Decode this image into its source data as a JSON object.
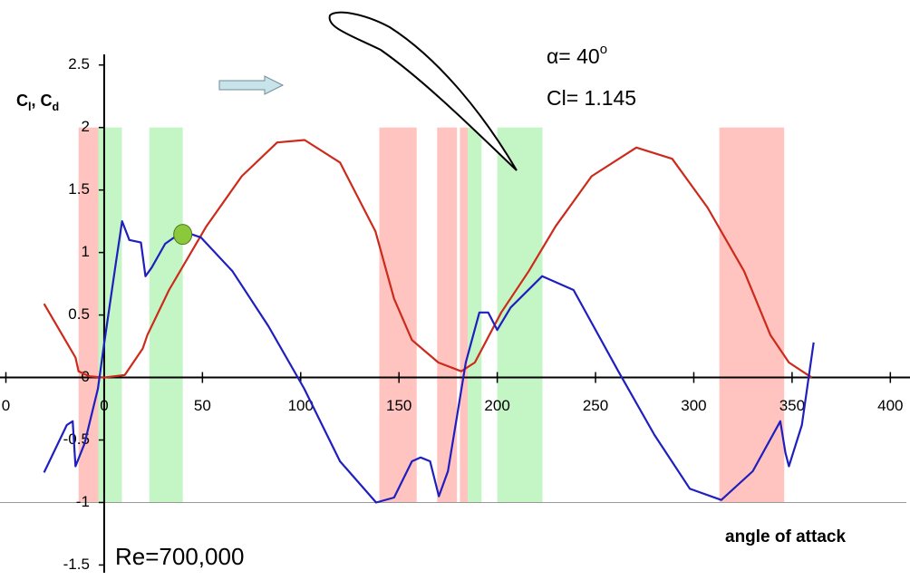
{
  "chart_data": {
    "type": "line",
    "y_label": [
      {
        "text": "C"
      },
      {
        "text": "l",
        "subscript": true
      },
      {
        "text": ", C"
      },
      {
        "text": "d",
        "subscript": true
      }
    ],
    "x_label": "angle of attack",
    "annotations": [
      {
        "parts": [
          {
            "text": "α= 40"
          },
          {
            "text": "o",
            "superscript": true
          }
        ]
      },
      {
        "parts": [
          {
            "text": "Cl= 1.145"
          }
        ]
      },
      {
        "parts": [
          {
            "text": "Re=700,000"
          }
        ]
      }
    ],
    "xlim": [
      -53,
      410
    ],
    "ylim": [
      -1.62,
      3.02
    ],
    "xticks": [
      {
        "value": -50,
        "label": "0"
      },
      0,
      50,
      100,
      150,
      200,
      250,
      300,
      350,
      400
    ],
    "yticks": [
      -1.5,
      -1,
      -0.5,
      0,
      0.5,
      1,
      1.5,
      2,
      2.5
    ],
    "hlines": [
      -1
    ],
    "regions": [
      {
        "x": [
          -13,
          0
        ],
        "y": [
          -1,
          2
        ],
        "color": "#ffc4c0"
      },
      {
        "x": [
          -3,
          9
        ],
        "y": [
          -1,
          2
        ],
        "color": "#c4f5c4"
      },
      {
        "x": [
          23,
          40
        ],
        "y": [
          -1,
          2
        ],
        "color": "#c4f5c4"
      },
      {
        "x": [
          140,
          159
        ],
        "y": [
          -1,
          2
        ],
        "color": "#ffc4c0"
      },
      {
        "x": [
          169.4,
          179.5
        ],
        "y": [
          -1,
          2
        ],
        "color": "#ffc4c0"
      },
      {
        "x": [
          181,
          185
        ],
        "y": [
          -1,
          2
        ],
        "color": "#ffc4c0"
      },
      {
        "x": [
          185,
          192
        ],
        "y": [
          -1,
          2
        ],
        "color": "#c4f5c4"
      },
      {
        "x": [
          200,
          223
        ],
        "y": [
          -1,
          2
        ],
        "color": "#c4f5c4"
      },
      {
        "x": [
          313,
          346
        ],
        "y": [
          -1,
          2
        ],
        "color": "#ffc4c0"
      }
    ],
    "series": [
      {
        "name": "Cd",
        "color": "#cc2a1a",
        "x": [
          -30.6,
          -14.6,
          -13,
          -7.5,
          0,
          10.5,
          19.6,
          22,
          33,
          52,
          70,
          88,
          102,
          120,
          138,
          147.5,
          156.6,
          170,
          181.7,
          188.6,
          202,
          216,
          229.7,
          248,
          270.8,
          289,
          307,
          325.6,
          339,
          348.4,
          360
        ],
        "values": [
          0.59,
          0.16,
          0.05,
          0.01,
          0,
          0.02,
          0.23,
          0.34,
          0.7,
          1.21,
          1.61,
          1.88,
          1.9,
          1.72,
          1.17,
          0.63,
          0.3,
          0.12,
          0.05,
          0.12,
          0.52,
          0.85,
          1.21,
          1.61,
          1.84,
          1.75,
          1.36,
          0.85,
          0.34,
          0.12,
          0
        ]
      },
      {
        "name": "Cl",
        "color": "#1f1fbf",
        "x": [
          -30.6,
          -19,
          -16,
          -14.6,
          -10,
          -3.2,
          0,
          6,
          9.1,
          12.8,
          18.7,
          21,
          24.2,
          31,
          40,
          49.3,
          65.3,
          83.6,
          101.8,
          120,
          138.4,
          147.5,
          156.6,
          161,
          165.8,
          170.3,
          174.9,
          179.5,
          184,
          190.9,
          195.4,
          200,
          206.8,
          222.8,
          238.8,
          261.6,
          280,
          298,
          314,
          330,
          344,
          346.6,
          348.4,
          355,
          361
        ],
        "values": [
          -0.76,
          -0.38,
          -0.35,
          -0.71,
          -0.53,
          -0.09,
          0.27,
          0.92,
          1.25,
          1.1,
          1.08,
          0.81,
          0.88,
          1.07,
          1.17,
          1.12,
          0.85,
          0.41,
          -0.09,
          -0.67,
          -1.0,
          -0.96,
          -0.67,
          -0.64,
          -0.67,
          -0.95,
          -0.75,
          -0.31,
          0.12,
          0.52,
          0.52,
          0.38,
          0.56,
          0.81,
          0.7,
          0.05,
          -0.46,
          -0.89,
          -0.98,
          -0.75,
          -0.35,
          -0.6,
          -0.71,
          -0.38,
          0.28
        ]
      }
    ],
    "marker": {
      "x": 40,
      "y": 1.145,
      "color": "#8cc83c"
    }
  }
}
